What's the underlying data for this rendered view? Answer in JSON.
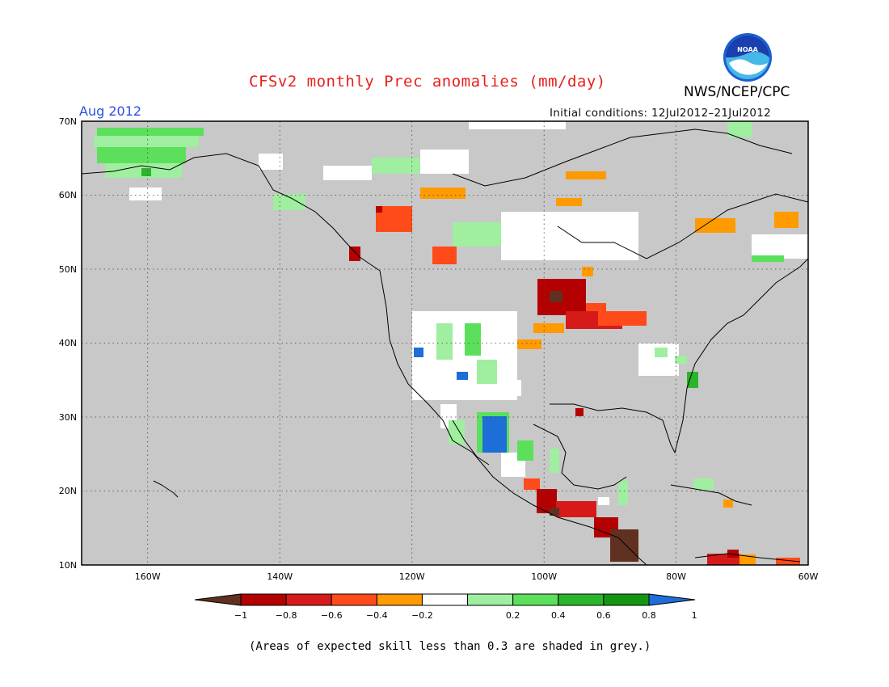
{
  "title": "CFSv2 monthly Prec anomalies (mm/day)",
  "agency": "NWS/NCEP/CPC",
  "logo_text": "NOAA",
  "valid_month": "Aug 2012",
  "initial_conditions": "Initial conditions: 12Jul2012–21Jul2012",
  "note": "(Areas of expected skill less than 0.3 are shaded in grey.)",
  "map": {
    "lon_range": [
      -170,
      -60
    ],
    "lat_range": [
      10,
      70
    ],
    "lat_labels": [
      "70N",
      "60N",
      "50N",
      "40N",
      "30N",
      "20N",
      "10N"
    ],
    "lon_labels": [
      "160W",
      "140W",
      "120W",
      "100W",
      "80W",
      "60W"
    ],
    "background_grey": "#c8c8c8"
  },
  "colorbar": {
    "labels": [
      "−1",
      "−0.8",
      "−0.6",
      "−0.4",
      "−0.2",
      "0.2",
      "0.4",
      "0.6",
      "0.8",
      "1"
    ],
    "colors": [
      "#603020",
      "#b40000",
      "#d61a1a",
      "#ff4a1a",
      "#ff9a00",
      "#ffffff",
      "#a0eea0",
      "#5ce05c",
      "#2bb52b",
      "#139713",
      "#1e6ed8"
    ]
  }
}
